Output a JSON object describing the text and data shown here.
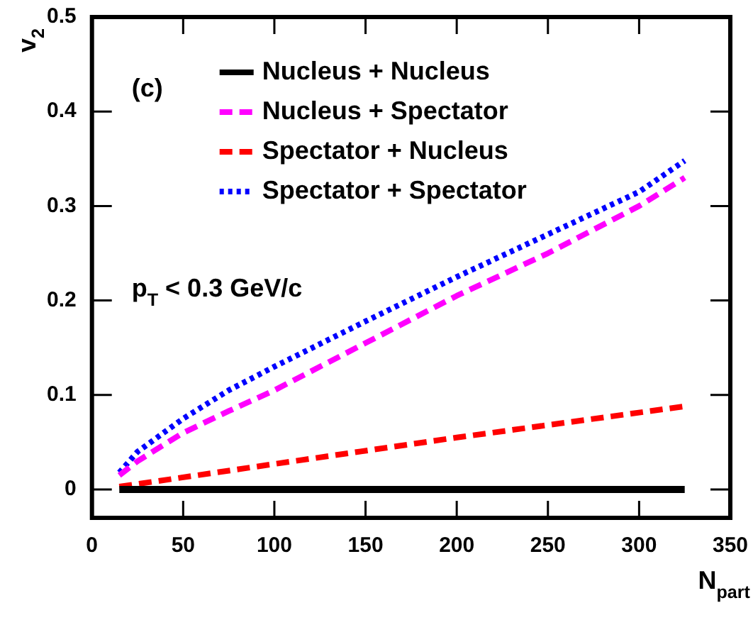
{
  "chart_data": {
    "type": "line",
    "xlabel": "N$_{part}$",
    "ylabel": "v$_{2}$",
    "annotations": [
      "(c)",
      "p$_{T}$ < 0.3 GeV/c"
    ],
    "xlim": [
      0,
      350
    ],
    "xticks": [
      0,
      50,
      100,
      150,
      200,
      250,
      300,
      350
    ],
    "ylim": [
      -0.03,
      0.5
    ],
    "yticks": [
      0,
      0.1,
      0.2,
      0.3,
      0.4,
      0.5
    ],
    "grid": false,
    "legend": "top",
    "marker": "none",
    "series": [
      {
        "name": "Nucleus + Nucleus",
        "color": "#000000",
        "line_style": "solid",
        "x": [
          15,
          325
        ],
        "values": [
          0,
          0
        ]
      },
      {
        "name": "Nucleus + Spectator",
        "color": "#ff00ff",
        "line_style": "dashed",
        "x": [
          15,
          25,
          50,
          75,
          100,
          150,
          200,
          250,
          300,
          325
        ],
        "values": [
          0.015,
          0.03,
          0.06,
          0.083,
          0.105,
          0.155,
          0.205,
          0.25,
          0.3,
          0.33
        ]
      },
      {
        "name": "Spectator + Nucleus",
        "color": "#ff0000",
        "line_style": "dashed",
        "x": [
          15,
          100,
          200,
          325
        ],
        "values": [
          0.003,
          0.027,
          0.055,
          0.088
        ]
      },
      {
        "name": "Spectator + Spectator",
        "color": "#0000ff",
        "line_style": "dotted",
        "x": [
          15,
          25,
          50,
          75,
          100,
          150,
          200,
          250,
          300,
          325
        ],
        "values": [
          0.018,
          0.04,
          0.075,
          0.105,
          0.13,
          0.178,
          0.225,
          0.27,
          0.315,
          0.348
        ]
      }
    ]
  }
}
